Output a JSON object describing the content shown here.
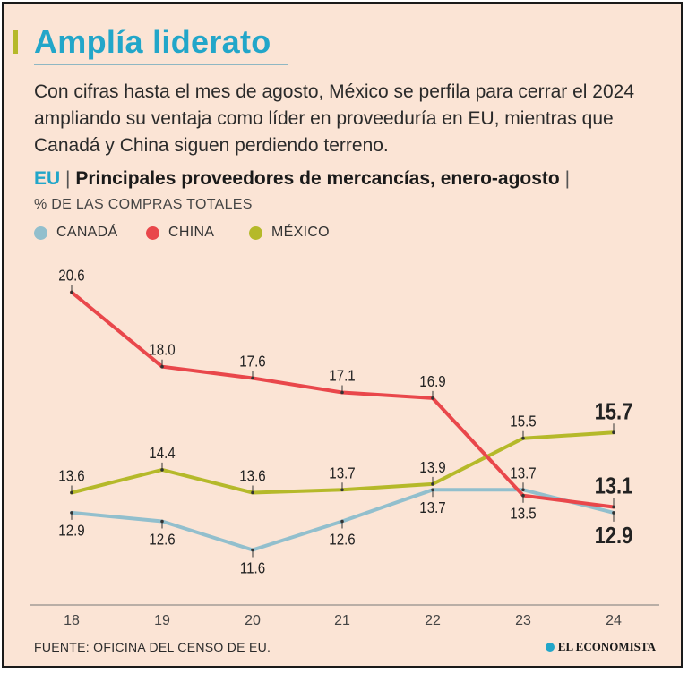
{
  "headline": "Amplía liderato",
  "intro": "Con cifras hasta el mes de agosto, México se perfila para cerrar el 2024 ampliando su ventaja como líder en proveeduría en EU, mientras que Canadá y China siguen perdiendo terreno.",
  "chart_heading": {
    "country": "EU",
    "separator": "|",
    "title": "Principales proveedores de mercancías, enero-agosto",
    "trailing": "|"
  },
  "source": "FUENTE: OFICINA DEL CENSO DE EU.",
  "brand": "EL ECONOMISTA",
  "colors": {
    "background": "#fbe4d5",
    "canada": "#92bfcd",
    "china": "#e9474b",
    "mexico": "#b5b92a",
    "accent": "#22a6c9"
  },
  "chart_data": {
    "type": "line",
    "title": "Principales proveedores de mercancías, enero-agosto",
    "ylabel": "% DE LAS COMPRAS TOTALES",
    "xlabel": "",
    "ylim": [
      10.5,
      21.5
    ],
    "grid": false,
    "legend_position": "top-left",
    "x": [
      "18",
      "19",
      "20",
      "21",
      "22",
      "23",
      "24"
    ],
    "series": [
      {
        "name": "CANADÁ",
        "color": "#92bfcd",
        "values": [
          12.9,
          12.6,
          11.6,
          12.6,
          13.7,
          13.7,
          12.9
        ],
        "labels": [
          "12.9",
          "12.6",
          "11.6",
          "12.6",
          "13.7",
          "13.7",
          "12.9"
        ]
      },
      {
        "name": "CHINA",
        "color": "#e9474b",
        "values": [
          20.6,
          18.0,
          17.6,
          17.1,
          16.9,
          13.5,
          13.1
        ],
        "labels": [
          "20.6",
          "18.0",
          "17.6",
          "17.1",
          "16.9",
          "13.5",
          "13.1"
        ]
      },
      {
        "name": "MÉXICO",
        "color": "#b5b92a",
        "values": [
          13.6,
          14.4,
          13.6,
          13.7,
          13.9,
          15.5,
          15.7
        ],
        "labels": [
          "13.6",
          "14.4",
          "13.6",
          "13.7",
          "13.9",
          "15.5",
          "15.7"
        ]
      }
    ]
  }
}
